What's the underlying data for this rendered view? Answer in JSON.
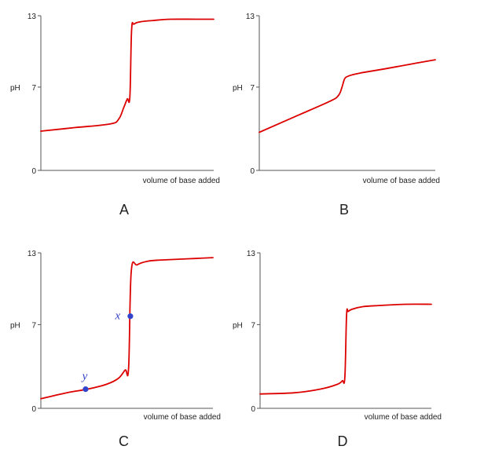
{
  "colors": {
    "curve": "#dd0000",
    "point": "#3344cc",
    "axis": "#555555"
  },
  "chart_data": [
    {
      "type": "line",
      "panel": "A",
      "ylabel": "pH",
      "xlabel": "volume of base added",
      "ylim": [
        0,
        13
      ],
      "xlim": [
        0,
        100
      ],
      "yticks": [
        {
          "value": 0,
          "label": "0"
        },
        {
          "value": 7,
          "label": "7"
        },
        {
          "value": 13,
          "label": "13"
        }
      ],
      "grid": false,
      "series": [
        {
          "x": [
            0,
            20,
            40,
            45,
            48,
            50,
            51.5,
            52.5,
            54,
            58,
            65,
            75,
            90,
            100
          ],
          "y": [
            3.3,
            3.6,
            3.9,
            4.3,
            5.3,
            6.0,
            6.2,
            11.8,
            12.3,
            12.5,
            12.6,
            12.7,
            12.7,
            12.7
          ]
        }
      ],
      "annotations": []
    },
    {
      "type": "line",
      "panel": "B",
      "ylabel": "pH",
      "xlabel": "volume of base added",
      "ylim": [
        0,
        13
      ],
      "xlim": [
        0,
        100
      ],
      "yticks": [
        {
          "value": 0,
          "label": "0"
        },
        {
          "value": 7,
          "label": "7"
        },
        {
          "value": 13,
          "label": "13"
        }
      ],
      "grid": false,
      "series": [
        {
          "x": [
            0,
            20,
            40,
            45,
            47,
            48,
            49,
            52,
            58,
            70,
            85,
            100
          ],
          "y": [
            3.2,
            4.5,
            5.8,
            6.3,
            7.0,
            7.5,
            7.8,
            8.0,
            8.2,
            8.5,
            8.9,
            9.3
          ]
        }
      ],
      "annotations": []
    },
    {
      "type": "line",
      "panel": "C",
      "ylabel": "pH",
      "xlabel": "volume of  base added",
      "ylim": [
        0,
        13
      ],
      "xlim": [
        0,
        100
      ],
      "yticks": [
        {
          "value": 0,
          "label": "0"
        },
        {
          "value": 7,
          "label": "7"
        },
        {
          "value": 13,
          "label": "13"
        }
      ],
      "grid": false,
      "series": [
        {
          "x": [
            0,
            15,
            27,
            38,
            45,
            49,
            51,
            52.5,
            56,
            62,
            70,
            85,
            100
          ],
          "y": [
            0.8,
            1.3,
            1.6,
            2.0,
            2.5,
            3.2,
            3.4,
            11.4,
            12.0,
            12.3,
            12.4,
            12.5,
            12.6
          ]
        }
      ],
      "annotations": [
        {
          "label": "x",
          "x": 52,
          "y": 7.7
        },
        {
          "label": "y",
          "x": 26,
          "y": 1.6
        }
      ]
    },
    {
      "type": "line",
      "panel": "D",
      "ylabel": "pH",
      "xlabel": "volume of base added",
      "ylim": [
        0,
        13
      ],
      "xlim": [
        0,
        100
      ],
      "yticks": [
        {
          "value": 0,
          "label": "0"
        },
        {
          "value": 7,
          "label": "7"
        },
        {
          "value": 13,
          "label": "13"
        }
      ],
      "grid": false,
      "series": [
        {
          "x": [
            0,
            20,
            35,
            45,
            48,
            49.5,
            50.5,
            51.5,
            54,
            60,
            70,
            85,
            100
          ],
          "y": [
            1.2,
            1.3,
            1.6,
            2.0,
            2.3,
            2.6,
            7.8,
            8.1,
            8.3,
            8.5,
            8.6,
            8.7,
            8.7
          ]
        }
      ],
      "annotations": []
    }
  ]
}
